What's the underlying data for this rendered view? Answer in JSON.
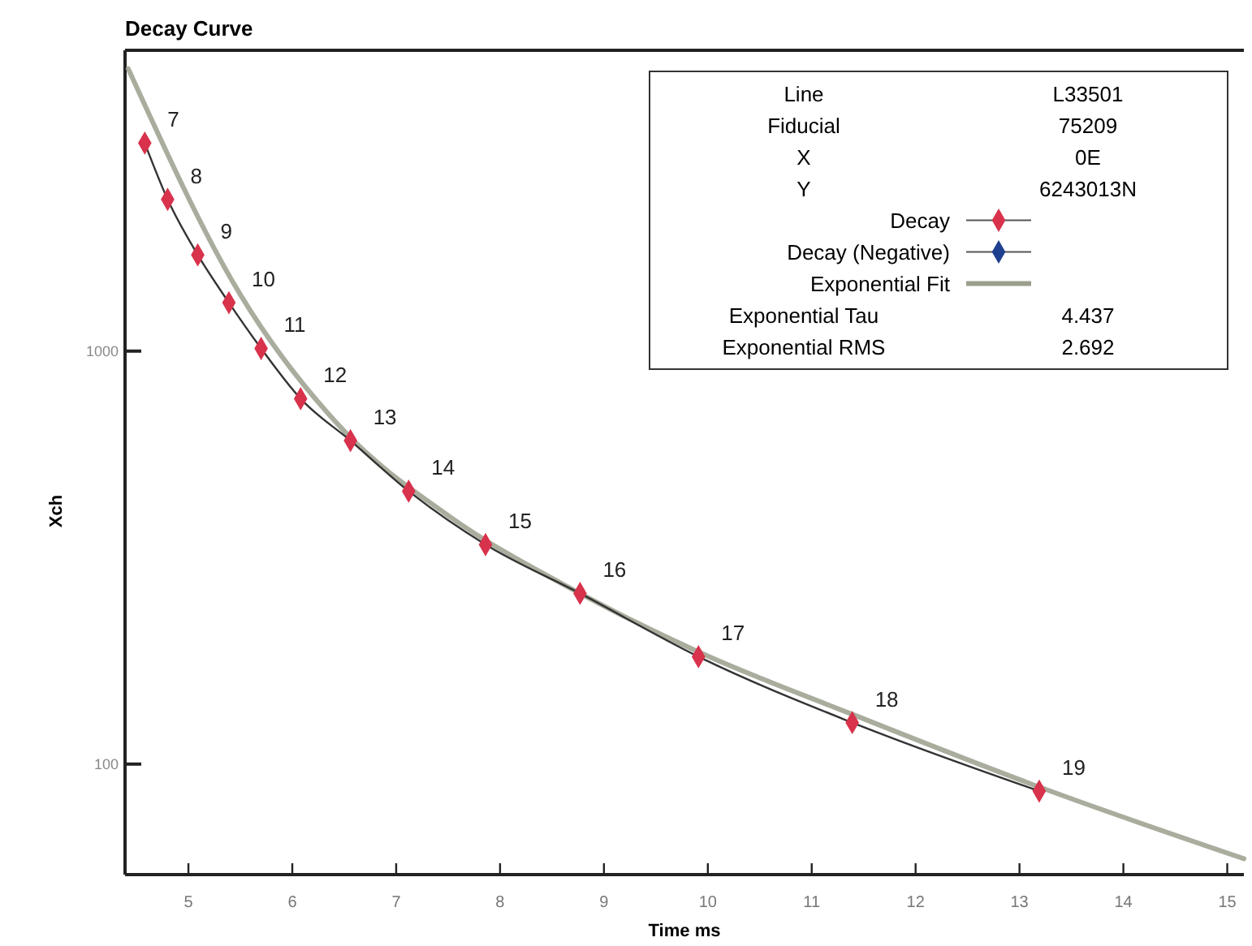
{
  "chart_data": {
    "type": "line",
    "title": "Decay Curve",
    "xlabel": "Time ms",
    "ylabel": "Xch",
    "log": "y",
    "xlim": [
      4.39,
      15.16
    ],
    "xticks": [
      5,
      6,
      7,
      8,
      9,
      10,
      11,
      12,
      13,
      14,
      15
    ],
    "ylim": [
      54,
      5350
    ],
    "yticks": [
      100,
      1000
    ],
    "grid": false,
    "legend": "top right",
    "marker": "diamond",
    "series": [
      {
        "name": "Decay",
        "color": "#d8324c",
        "x": [
          4.58,
          4.8,
          5.09,
          5.39,
          5.7,
          6.08,
          6.56,
          7.12,
          7.86,
          8.77,
          9.91,
          11.39,
          13.19
        ],
        "values": [
          3190,
          2330,
          1710,
          1310,
          1015,
          767,
          607,
          458,
          340,
          259,
          182,
          126,
          86
        ]
      },
      {
        "name": "Decay (Negative)",
        "color": "#1f3f8f"
      },
      {
        "name": "Exponential Fit",
        "color": "#9a9f8c",
        "type": "line",
        "marker": "none",
        "x": [
          4.42,
          5.5,
          6.5,
          7.5,
          8.77,
          9.91,
          11.39,
          13.19,
          15.16
        ],
        "values": [
          4830,
          1370,
          640,
          400,
          259,
          187,
          132,
          88,
          59
        ]
      }
    ],
    "annotations": [
      "Line",
      "L33501",
      "Fiducial",
      "75209",
      "X",
      "0E",
      "Y",
      "6243013N",
      "Exponential Tau",
      "4.437",
      "Exponential RMS",
      "2.692",
      {
        "text": "7",
        "x": 4.58,
        "y": 3190
      },
      {
        "text": "8",
        "x": 4.8,
        "y": 2330
      },
      {
        "text": "9",
        "x": 5.09,
        "y": 1710
      },
      {
        "text": "10",
        "x": 5.39,
        "y": 1310
      },
      {
        "text": "11",
        "x": 5.7,
        "y": 1015
      },
      {
        "text": "12",
        "x": 6.08,
        "y": 767
      },
      {
        "text": "13",
        "x": 6.56,
        "y": 607
      },
      {
        "text": "14",
        "x": 7.12,
        "y": 458
      },
      {
        "text": "15",
        "x": 7.86,
        "y": 340
      },
      {
        "text": "16",
        "x": 8.77,
        "y": 259
      },
      {
        "text": "17",
        "x": 9.91,
        "y": 182
      },
      {
        "text": "18",
        "x": 11.39,
        "y": 126
      },
      {
        "text": "19",
        "x": 13.19,
        "y": 86
      }
    ]
  }
}
